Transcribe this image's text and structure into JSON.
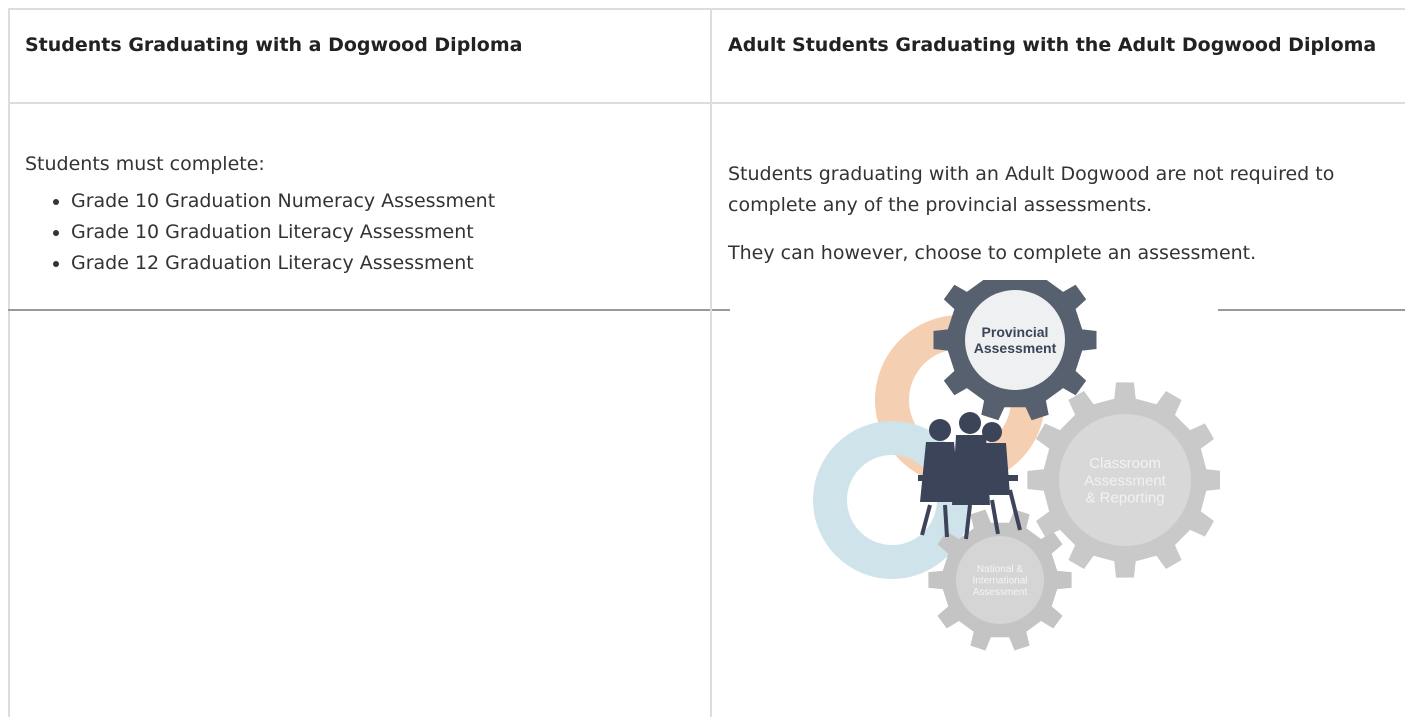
{
  "table": {
    "headers": [
      "Students Graduating with a Dogwood Diploma",
      "Adult Students Graduating with the Adult Dogwood Diploma"
    ],
    "left_cell": {
      "intro": "Students must complete:",
      "items": [
        "Grade 10 Graduation Numeracy Assessment",
        "Grade 10 Graduation Literacy Assessment",
        "Grade 12 Graduation Literacy Assessment"
      ]
    },
    "right_cell": {
      "paragraphs": [
        "Students graduating with an Adult Dogwood are not required to complete any of the provincial assessments.",
        "They can however, choose to complete an assessment."
      ]
    }
  },
  "figure": {
    "gears": [
      [
        "Provincial",
        "Assessment"
      ],
      [
        "Classroom",
        "Assessment",
        "& Reporting"
      ],
      [
        "National &",
        "International",
        "Assessment"
      ]
    ]
  }
}
